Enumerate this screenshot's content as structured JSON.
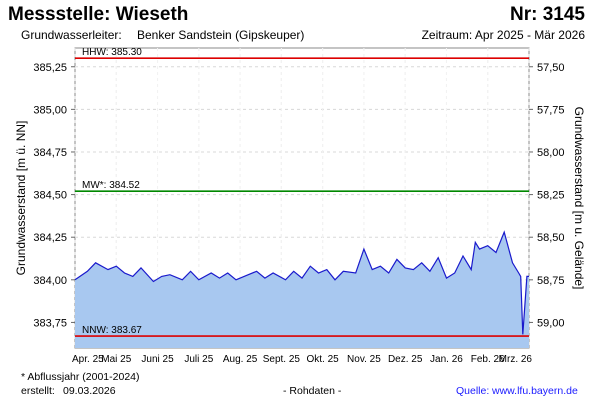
{
  "header": {
    "title": "Messstelle: Wieseth",
    "number": "Nr: 3145",
    "aquifer_label": "Grundwasserleiter:",
    "aquifer_value": "Benker Sandstein (Gipskeuper)",
    "period": "Zeitraum: Apr 2025 - Mär 2026"
  },
  "footer": {
    "footnote": "* Abflussjahr (2001-2024)",
    "created_label": "erstellt:",
    "created_date": "09.03.2026",
    "rawdata": "- Rohdaten -",
    "source_label": "Quelle:",
    "source_url": "www.lfu.bayern.de"
  },
  "colors": {
    "area_fill": "#a8c8f0",
    "line": "#1a1acc",
    "hhw": "#dd0000",
    "nnw": "#dd0000",
    "mw": "#008800",
    "link": "#1a1aff"
  },
  "chart_data": {
    "type": "area",
    "title": "",
    "ylabel": "Grundwasserstand [m ü. NN]",
    "ylabel_right": "Grundwasserstand [m u. Gelände]",
    "ylim": [
      383.6,
      385.36
    ],
    "y_ticks": [
      "383,75",
      "384,00",
      "384,25",
      "384,50",
      "384,75",
      "385,00",
      "385,25"
    ],
    "y_tick_values": [
      383.75,
      384.0,
      384.25,
      384.5,
      384.75,
      385.0,
      385.25
    ],
    "y_right_ticks": [
      "59,00",
      "58,75",
      "58,50",
      "58,25",
      "58,00",
      "57,75",
      "57,50"
    ],
    "x_labels": [
      "Apr. 25",
      "Mai 25",
      "Juni 25",
      "Juli 25",
      "Aug. 25",
      "Sept. 25",
      "Okt. 25",
      "Nov. 25",
      "Dez. 25",
      "Jan. 26",
      "Feb. 26",
      "Mrz. 26"
    ],
    "grid": true,
    "reference_lines": [
      {
        "label": "HHW: 385.30",
        "value": 385.3,
        "color": "#dd0000"
      },
      {
        "label": "MW*: 384.52",
        "value": 384.52,
        "color": "#008800"
      },
      {
        "label": "NNW: 383.67",
        "value": 383.67,
        "color": "#dd0000"
      }
    ],
    "series": [
      {
        "x": [
          0,
          0.3,
          0.5,
          0.8,
          1.0,
          1.2,
          1.4,
          1.6,
          1.9,
          2.1,
          2.3,
          2.6,
          2.8,
          3.0,
          3.3,
          3.5,
          3.7,
          3.9,
          4.2,
          4.4,
          4.6,
          4.8,
          5.1,
          5.3,
          5.5,
          5.7,
          5.9,
          6.1,
          6.3,
          6.5,
          6.8,
          7.0,
          7.2,
          7.4,
          7.6,
          7.8,
          8.0,
          8.2,
          8.4,
          8.6,
          8.8,
          9.0,
          9.2,
          9.4,
          9.6,
          9.7,
          9.8,
          10.0,
          10.2,
          10.4,
          10.6,
          10.75,
          10.8,
          10.85,
          10.95,
          11.0
        ],
        "y": [
          384.0,
          384.05,
          384.1,
          384.06,
          384.08,
          384.04,
          384.02,
          384.07,
          383.99,
          384.02,
          384.03,
          384.0,
          384.05,
          384.0,
          384.04,
          384.01,
          384.04,
          384.0,
          384.03,
          384.05,
          384.01,
          384.04,
          384.0,
          384.05,
          384.01,
          384.08,
          384.04,
          384.06,
          384.0,
          384.05,
          384.04,
          384.18,
          384.06,
          384.08,
          384.04,
          384.12,
          384.07,
          384.06,
          384.1,
          384.05,
          384.13,
          384.01,
          384.04,
          384.14,
          384.06,
          384.22,
          384.18,
          384.2,
          384.16,
          384.28,
          384.1,
          384.04,
          384.02,
          383.68,
          384.02,
          384.02
        ]
      }
    ]
  }
}
